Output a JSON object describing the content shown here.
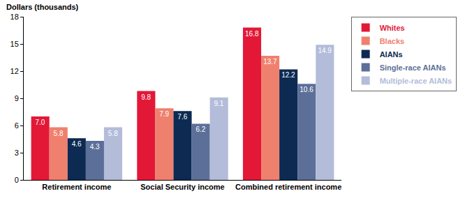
{
  "chart_data": {
    "type": "bar",
    "y_label": "Dollars (thousands)",
    "categories": [
      "Retirement income",
      "Social Security income",
      "Combined retirement income"
    ],
    "series": [
      {
        "name": "Whites",
        "color": "#e31837",
        "values": [
          7.0,
          9.8,
          16.8
        ],
        "value_labels": [
          "7.0",
          "9.8",
          "16.8"
        ]
      },
      {
        "name": "Blacks",
        "color": "#f0806e",
        "values": [
          5.8,
          7.9,
          13.7
        ],
        "value_labels": [
          "5.8",
          "7.9",
          "13.7"
        ]
      },
      {
        "name": "AIANs",
        "color": "#0c2a52",
        "values": [
          4.6,
          7.6,
          12.2
        ],
        "value_labels": [
          "4.6",
          "7.6",
          "12.2"
        ]
      },
      {
        "name": "Single-race AIANs",
        "color": "#5b6f98",
        "values": [
          4.3,
          6.2,
          10.6
        ],
        "value_labels": [
          "4.3",
          "6.2",
          "10.6"
        ]
      },
      {
        "name": "Multiple-race AIANs",
        "color": "#b3bcd9",
        "values": [
          5.8,
          9.1,
          14.9
        ],
        "value_labels": [
          "5.8",
          "9.1",
          "14.9"
        ]
      }
    ],
    "ylim": [
      0,
      18
    ],
    "yticks": [
      0,
      3,
      6,
      9,
      12,
      15,
      18
    ],
    "grid": false,
    "legend": "right",
    "data_labels": true
  }
}
